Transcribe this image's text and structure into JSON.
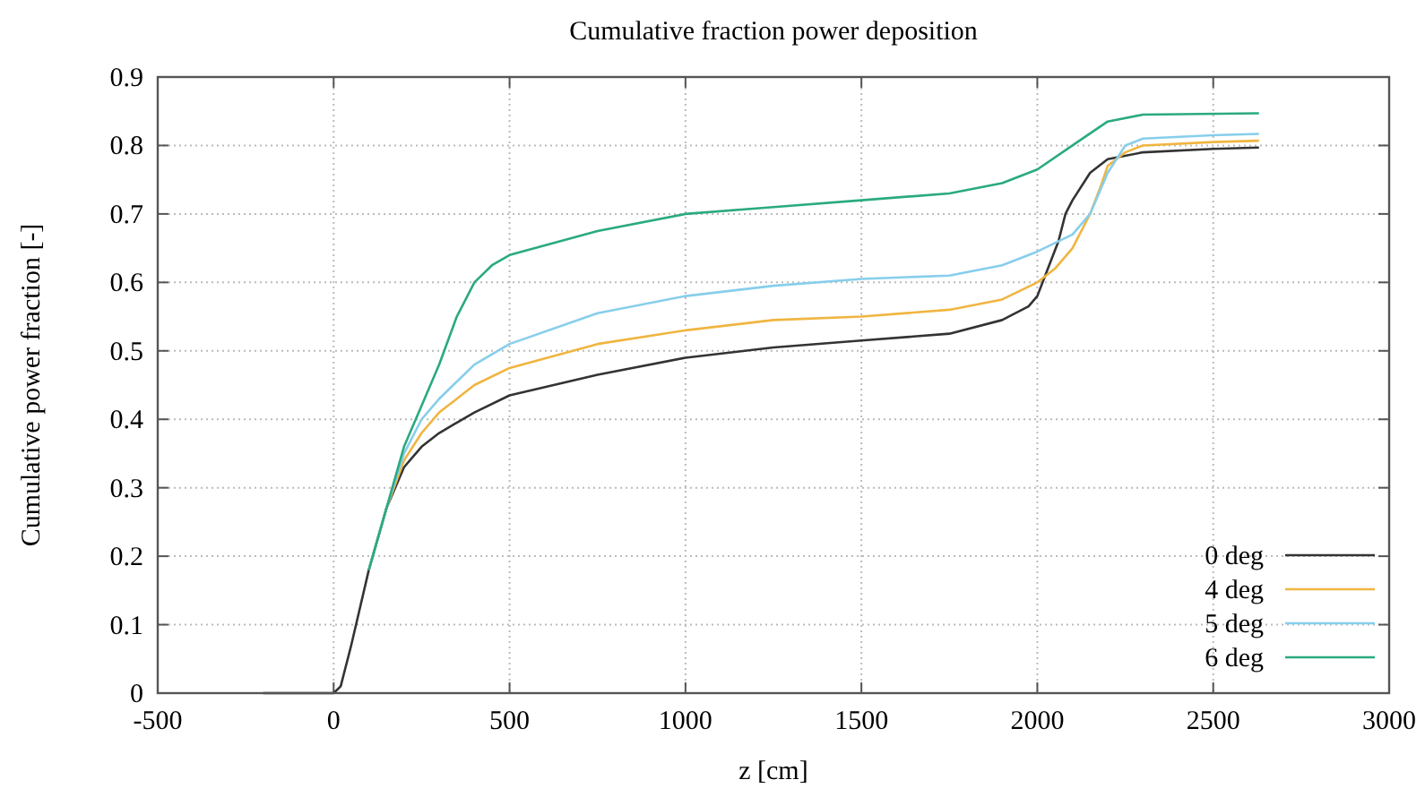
{
  "chart_data": {
    "type": "line",
    "title": "Cumulative fraction power deposition",
    "xlabel": "z [cm]",
    "ylabel": "Cumulative power fraction [-]",
    "xlim": [
      -500,
      3000
    ],
    "xticks": [
      -500,
      0,
      500,
      1000,
      1500,
      2000,
      2500,
      3000
    ],
    "ylim": [
      0,
      0.9
    ],
    "yticks": [
      0,
      0.1,
      0.2,
      0.3,
      0.4,
      0.5,
      0.6,
      0.7,
      0.8,
      0.9
    ],
    "grid": true,
    "legend": "bottom right",
    "line_style": "solid",
    "series": [
      {
        "name": "0 deg",
        "color": "#333333",
        "x": [
          -200,
          0,
          20,
          50,
          100,
          150,
          200,
          250,
          300,
          400,
          500,
          750,
          1000,
          1250,
          1500,
          1750,
          1900,
          1975,
          2000,
          2030,
          2060,
          2080,
          2100,
          2150,
          2200,
          2300,
          2500,
          2630
        ],
        "values": [
          0,
          0,
          0.01,
          0.07,
          0.18,
          0.27,
          0.33,
          0.36,
          0.38,
          0.41,
          0.435,
          0.465,
          0.49,
          0.505,
          0.515,
          0.525,
          0.545,
          0.565,
          0.58,
          0.62,
          0.66,
          0.7,
          0.72,
          0.76,
          0.78,
          0.79,
          0.795,
          0.797
        ]
      },
      {
        "name": "4 deg",
        "color": "#f0b540",
        "x": [
          100,
          150,
          200,
          250,
          300,
          400,
          500,
          750,
          1000,
          1250,
          1500,
          1750,
          1900,
          2000,
          2050,
          2100,
          2150,
          2180,
          2200,
          2250,
          2300,
          2500,
          2630
        ],
        "values": [
          0.18,
          0.27,
          0.34,
          0.38,
          0.41,
          0.45,
          0.475,
          0.51,
          0.53,
          0.545,
          0.55,
          0.56,
          0.575,
          0.6,
          0.62,
          0.65,
          0.7,
          0.74,
          0.77,
          0.79,
          0.8,
          0.805,
          0.807
        ]
      },
      {
        "name": "5 deg",
        "color": "#87ceeb",
        "x": [
          100,
          150,
          200,
          250,
          300,
          400,
          500,
          750,
          1000,
          1250,
          1500,
          1750,
          1900,
          2000,
          2100,
          2150,
          2200,
          2250,
          2300,
          2500,
          2630
        ],
        "values": [
          0.18,
          0.27,
          0.35,
          0.4,
          0.43,
          0.48,
          0.51,
          0.555,
          0.58,
          0.595,
          0.605,
          0.61,
          0.625,
          0.645,
          0.67,
          0.7,
          0.76,
          0.8,
          0.81,
          0.815,
          0.817
        ]
      },
      {
        "name": "6 deg",
        "color": "#2aaa80",
        "x": [
          100,
          150,
          200,
          250,
          300,
          350,
          400,
          450,
          500,
          750,
          1000,
          1250,
          1500,
          1750,
          1900,
          2000,
          2100,
          2200,
          2300,
          2630
        ],
        "values": [
          0.18,
          0.27,
          0.36,
          0.42,
          0.48,
          0.55,
          0.6,
          0.625,
          0.64,
          0.675,
          0.7,
          0.71,
          0.72,
          0.73,
          0.745,
          0.765,
          0.8,
          0.835,
          0.845,
          0.847
        ]
      }
    ]
  }
}
